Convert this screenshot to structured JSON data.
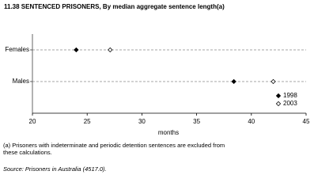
{
  "chart_data": {
    "type": "dot",
    "title": "11.38 SENTENCED PRISONERS, By median aggregate sentence length(a)",
    "x_label": "months",
    "categories": [
      "Females",
      "Males"
    ],
    "series": [
      {
        "name": "1998",
        "color": "#000000",
        "filled": true,
        "values": [
          24,
          38.4
        ]
      },
      {
        "name": "2003",
        "color": "#000000",
        "filled": false,
        "values": [
          27.1,
          42
        ]
      }
    ],
    "xlim": [
      20,
      45
    ],
    "xticks": [
      20,
      25,
      30,
      35,
      40,
      45
    ],
    "grid": true,
    "legend": "bottom-right",
    "footnote": "(a) Prisoners with indeterminate and periodic detention sentences are excluded from these calculations.",
    "source": "Source: Prisoners in Australia (4517.0)."
  }
}
